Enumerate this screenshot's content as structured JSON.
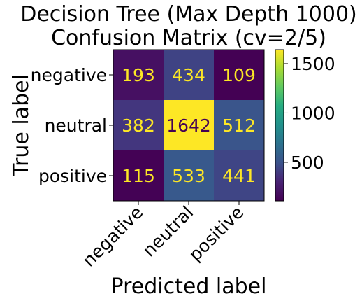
{
  "chart_data": {
    "type": "heatmap",
    "title_lines": [
      "Decision Tree (Max Depth 1000)",
      "Confusion Matrix (cv=2/5)"
    ],
    "xlabel": "Predicted label",
    "ylabel": "True label",
    "x_categories": [
      "negative",
      "neutral",
      "positive"
    ],
    "y_categories": [
      "negative",
      "neutral",
      "positive"
    ],
    "values": [
      [
        193,
        434,
        109
      ],
      [
        382,
        1642,
        512
      ],
      [
        115,
        533,
        441
      ]
    ],
    "colormap": "viridis",
    "colorbar": {
      "range": [
        109,
        1642
      ],
      "ticks": [
        500,
        1000,
        1500
      ]
    },
    "text_color_low": "#fde725",
    "text_color_high": "#440154",
    "grid": false
  }
}
